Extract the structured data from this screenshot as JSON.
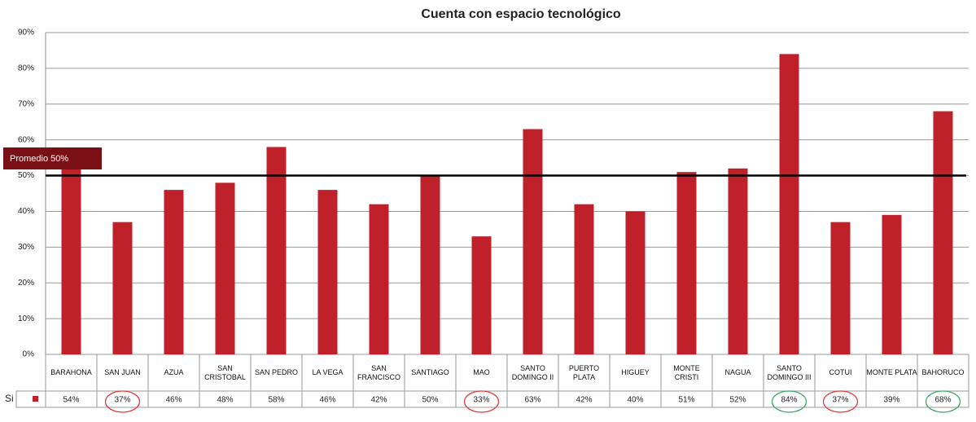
{
  "chart_data": {
    "type": "bar",
    "title": "Cuenta con espacio tecnológico",
    "categories": [
      "BARAHONA",
      "SAN JUAN",
      "AZUA",
      "SAN CRISTOBAL",
      "SAN PEDRO",
      "LA VEGA",
      "SAN FRANCISCO",
      "SANTIAGO",
      "MAO",
      "SANTO DOMINGO II",
      "PUERTO PLATA",
      "HIGUEY",
      "MONTE CRISTI",
      "NAGUA",
      "SANTO DOMINGO III",
      "COTUI",
      "MONTE PLATA",
      "BAHORUCO"
    ],
    "series": [
      {
        "name": "Si",
        "color": "#c0202a",
        "values": [
          54,
          37,
          46,
          48,
          58,
          46,
          42,
          50,
          33,
          63,
          42,
          40,
          51,
          52,
          84,
          37,
          39,
          68
        ],
        "value_labels": [
          "54%",
          "37%",
          "46%",
          "48%",
          "58%",
          "46%",
          "42%",
          "50%",
          "33%",
          "63%",
          "42%",
          "40%",
          "51%",
          "52%",
          "84%",
          "37%",
          "39%",
          "68%"
        ]
      }
    ],
    "ylim": [
      0,
      90
    ],
    "yticks": [
      {
        "value": 0,
        "label": "0%"
      },
      {
        "value": 10,
        "label": "10%"
      },
      {
        "value": 20,
        "label": "20%"
      },
      {
        "value": 30,
        "label": "30%"
      },
      {
        "value": 40,
        "label": "40%"
      },
      {
        "value": 50,
        "label": "50%"
      },
      {
        "value": 60,
        "label": "60%"
      },
      {
        "value": 70,
        "label": "70%"
      },
      {
        "value": 80,
        "label": "80%"
      },
      {
        "value": 90,
        "label": "90%"
      }
    ],
    "grid": true,
    "reference_line": {
      "value": 50,
      "label": "Promedio 50%",
      "color": "#000000",
      "label_color": "#7a1015"
    },
    "circle_colors": [
      null,
      "#e03a3a",
      null,
      null,
      null,
      null,
      null,
      null,
      "#e03a3a",
      null,
      null,
      null,
      null,
      null,
      "#3aa86a",
      "#e03a3a",
      null,
      "#3aa86a"
    ]
  }
}
